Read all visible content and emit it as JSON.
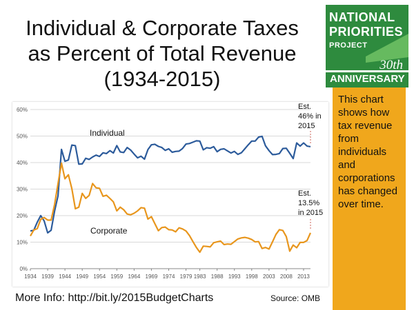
{
  "title": {
    "line1": "Individual & Corporate Taxes",
    "line2": "as Percent of Total Revenue",
    "line3": "(1934-2015)"
  },
  "logo": {
    "line1": "NATIONAL",
    "line2": "PRIORITIES",
    "line3": "PROJECT",
    "line4": "30th",
    "line5": "ANNIVERSARY"
  },
  "sidebar": {
    "text": "This chart shows how tax revenue from individuals and corporations has changed over time."
  },
  "footer": {
    "more_info": "More Info: http://bit.ly/2015BudgetCharts",
    "source": "Source: OMB"
  },
  "colors": {
    "individual": "#2c5b9b",
    "corporate": "#e8961d",
    "logo_green": "#2e8b3e",
    "sidebar_orange": "#f0a71c",
    "annotation_line": "#c0392b"
  },
  "chart_data": {
    "type": "line",
    "title": "Individual & Corporate Taxes as Percent of Total Revenue (1934-2015)",
    "xlabel": "",
    "ylabel": "",
    "ylim": [
      0,
      60
    ],
    "xlim": [
      1934,
      2015
    ],
    "yticks": [
      0,
      10,
      20,
      30,
      40,
      50,
      60
    ],
    "ytick_labels": [
      "0%",
      "10%",
      "20%",
      "30%",
      "40%",
      "50%",
      "60%"
    ],
    "xticks": [
      "1934",
      "1939",
      "1944",
      "1949",
      "1954",
      "1959",
      "1964",
      "1969",
      "1974",
      "1979",
      "1983",
      "1988",
      "1993",
      "1998",
      "2003",
      "2008",
      "2013"
    ],
    "grid": true,
    "x": [
      1934,
      1935,
      1936,
      1937,
      1938,
      1939,
      1940,
      1941,
      1942,
      1943,
      1944,
      1945,
      1946,
      1947,
      1948,
      1949,
      1950,
      1951,
      1952,
      1953,
      1954,
      1955,
      1956,
      1957,
      1958,
      1959,
      1960,
      1961,
      1962,
      1963,
      1964,
      1965,
      1966,
      1967,
      1968,
      1969,
      1970,
      1971,
      1972,
      1973,
      1974,
      1975,
      1976,
      1977,
      1978,
      1979,
      1980,
      1981,
      1982,
      1983,
      1984,
      1985,
      1986,
      1987,
      1988,
      1989,
      1990,
      1991,
      1992,
      1993,
      1994,
      1995,
      1996,
      1997,
      1998,
      1999,
      2000,
      2001,
      2002,
      2003,
      2004,
      2005,
      2006,
      2007,
      2008,
      2009,
      2010,
      2011,
      2012,
      2013,
      2014,
      2015
    ],
    "series": [
      {
        "name": "Individual",
        "values": [
          14.2,
          14.5,
          17.5,
          20,
          18,
          13.5,
          14.5,
          21.7,
          27.5,
          45,
          40.5,
          41,
          46.6,
          46.4,
          39.4,
          39.5,
          41.6,
          41.2,
          42.1,
          42.8,
          42.3,
          43.7,
          43.4,
          44.5,
          43.6,
          46.4,
          44,
          43.8,
          45.7,
          44.7,
          43.2,
          41.8,
          42.4,
          41.3,
          44.9,
          46.7,
          46.9,
          46.1,
          45.7,
          44.6,
          45.2,
          43.9,
          44.2,
          44.3,
          45.3,
          47,
          47.2,
          47.7,
          48.2,
          48.1,
          44.8,
          45.6,
          45.4,
          46,
          44.1,
          45,
          45.2,
          44.4,
          43.6,
          44.2,
          43.1,
          43.7,
          45.2,
          46.7,
          48.1,
          48.1,
          49.6,
          49.9,
          46.3,
          44.5,
          43,
          43.1,
          43.4,
          45.3,
          45.4,
          43.5,
          41.5,
          47.4,
          46.2,
          47.4,
          46.2,
          46
        ]
      },
      {
        "name": "Corporate",
        "values": [
          12.3,
          14.6,
          15.1,
          18.6,
          19.3,
          18.3,
          18.3,
          24.2,
          32.1,
          39.8,
          33.9,
          35.4,
          30.2,
          22.6,
          23.2,
          28.4,
          26.5,
          27.6,
          32.1,
          30.5,
          30.3,
          27.3,
          27.7,
          26.5,
          25.2,
          21.8,
          23.2,
          22.2,
          20.6,
          20.3,
          20.9,
          21.8,
          23,
          22.8,
          18.7,
          19.6,
          17,
          14.3,
          15.5,
          15.7,
          14.7,
          14.6,
          13.9,
          15.4,
          15,
          14.2,
          12.5,
          10.2,
          8,
          6.2,
          8.5,
          8.4,
          8.2,
          9.8,
          10.1,
          10.4,
          9.1,
          9.3,
          9.2,
          10.2,
          11.2,
          11.6,
          11.8,
          11.5,
          11,
          10.1,
          10.2,
          7.6,
          8,
          7.4,
          10.1,
          12.9,
          14.7,
          14.4,
          12.1,
          6.6,
          8.9,
          7.9,
          9.9,
          9.9,
          10.6,
          13.5
        ]
      }
    ],
    "series_labels": {
      "individual": "Individual",
      "corporate": "Corporate"
    },
    "annotations": {
      "individual_est": [
        "Est.",
        "46% in",
        "2015"
      ],
      "corporate_est": [
        "Est.",
        "13.5%",
        "in 2015"
      ]
    }
  }
}
